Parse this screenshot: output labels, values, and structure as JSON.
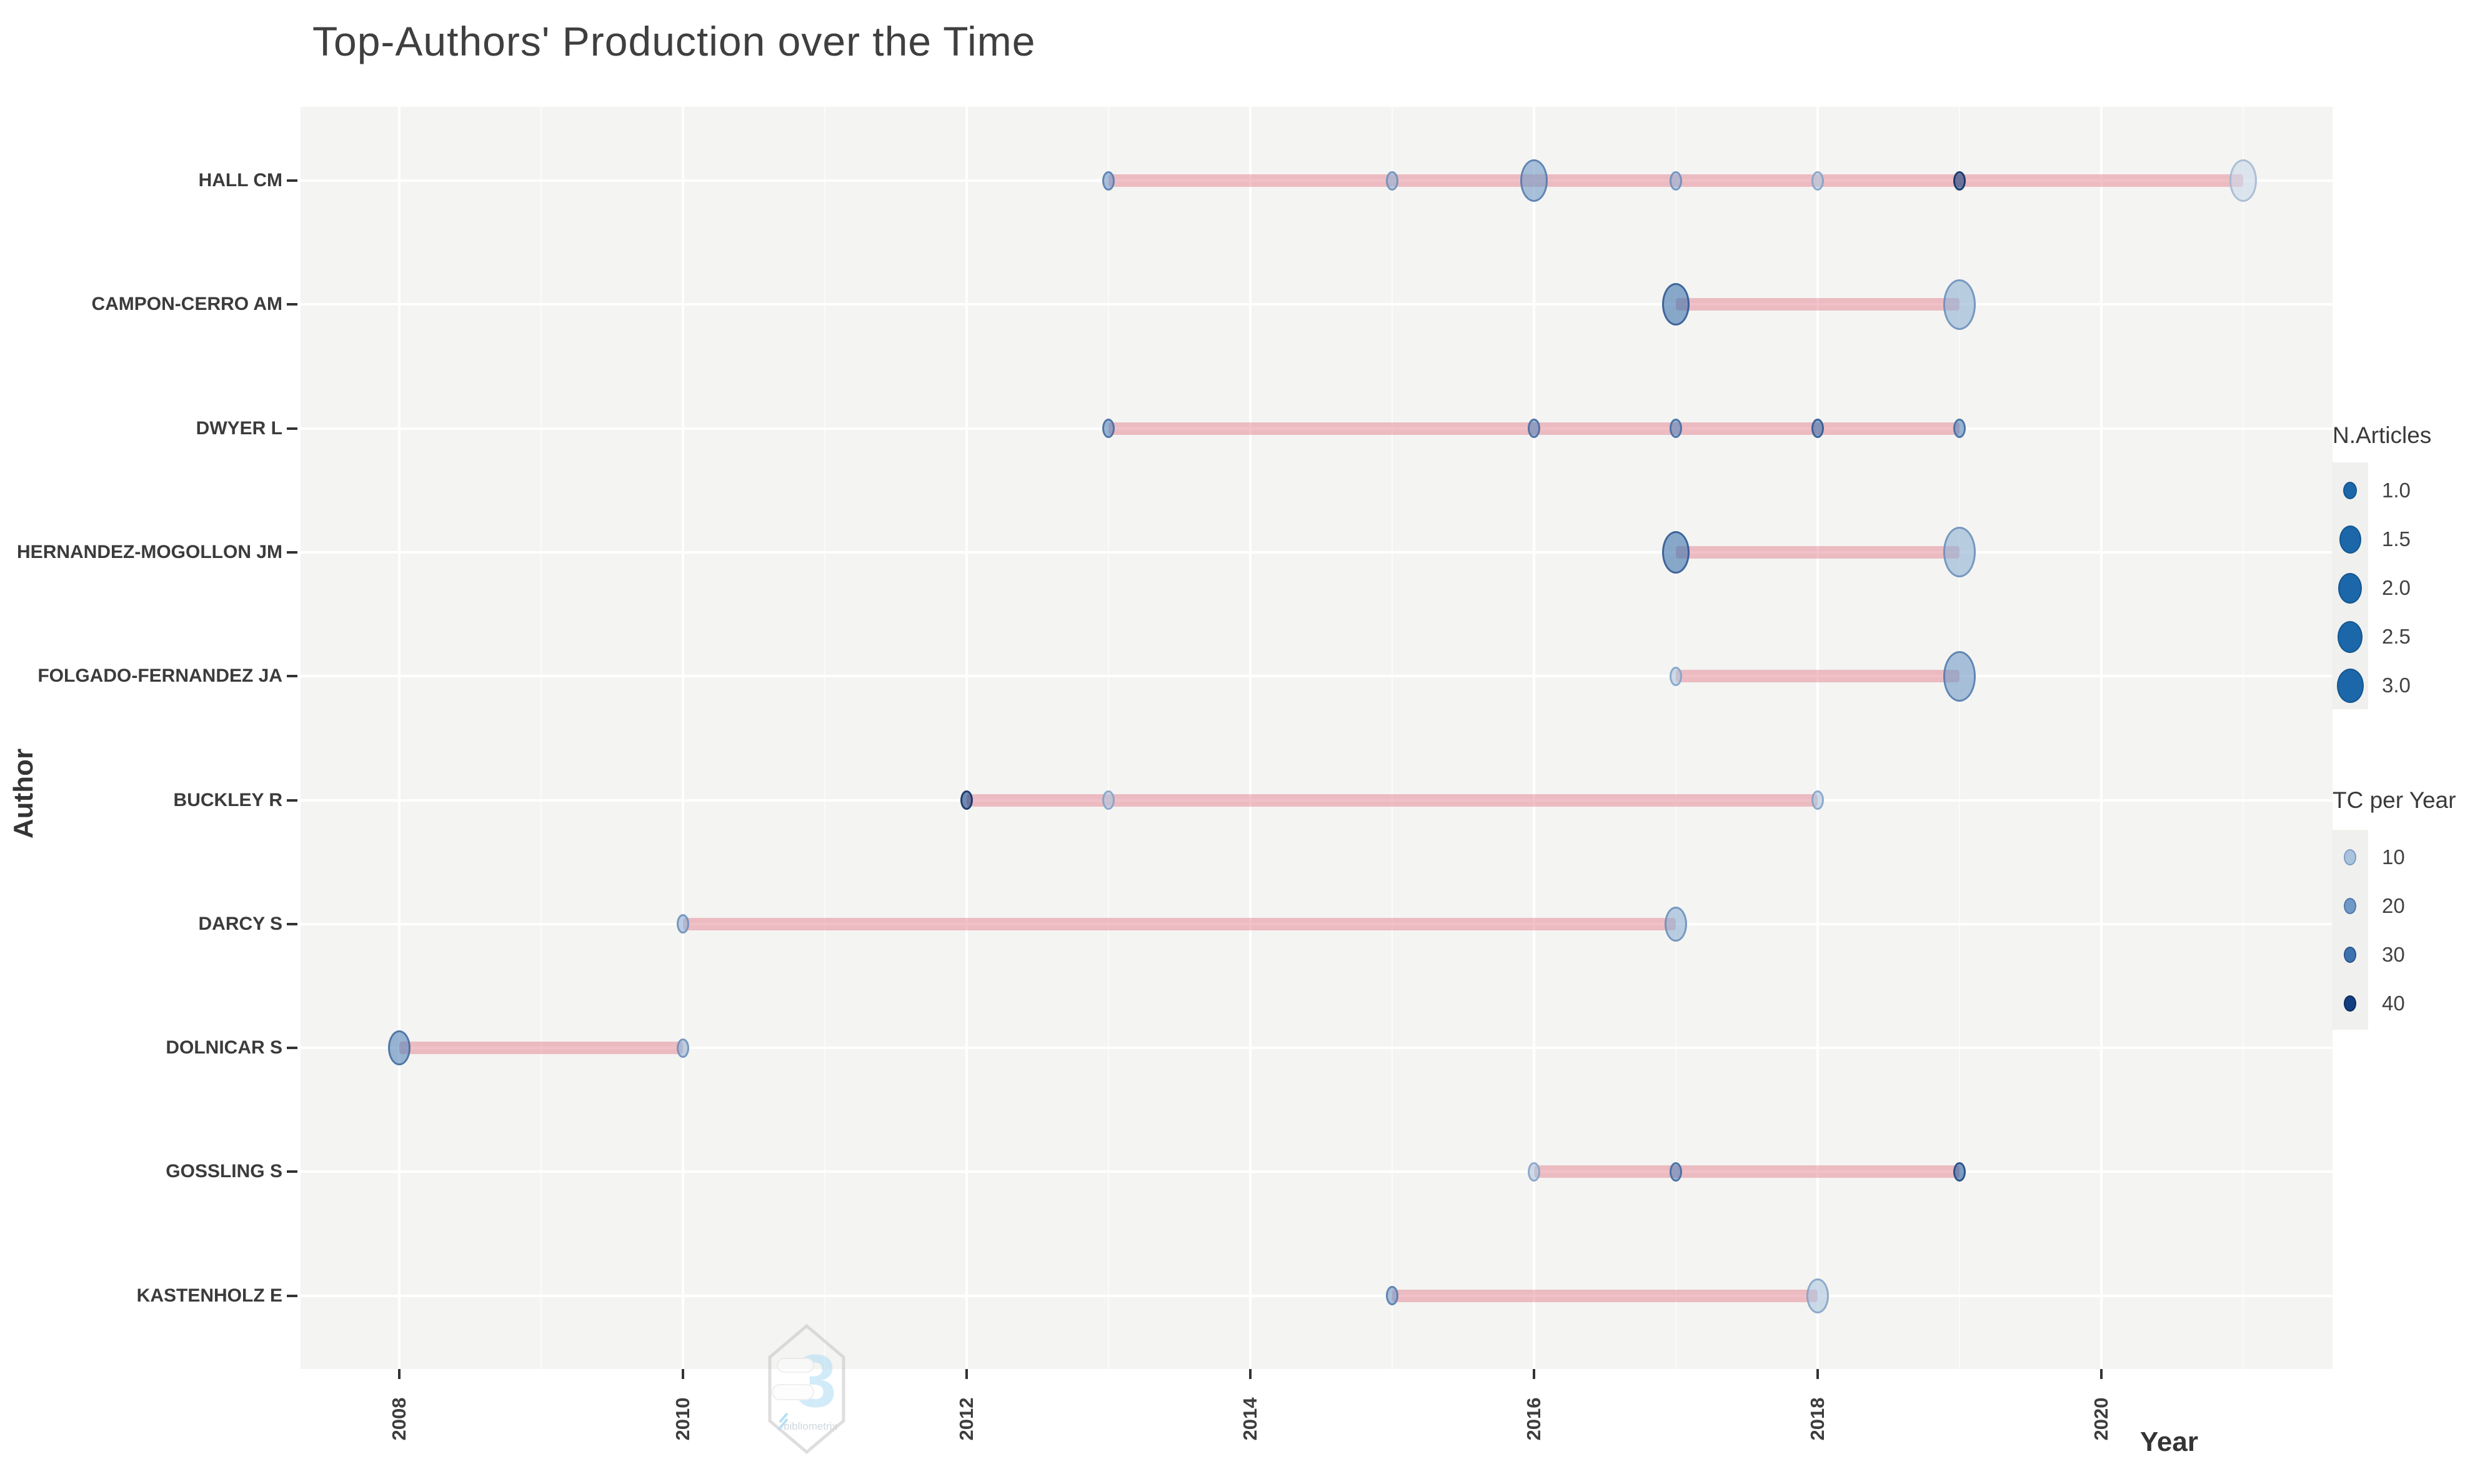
{
  "page": {
    "title": "Top-Authors' Production over the Time"
  },
  "axes": {
    "x_label": "Year",
    "y_label": "Author"
  },
  "legend_size": {
    "title": "N.Articles",
    "entries": [
      "1.0",
      "1.5",
      "2.0",
      "2.5",
      "3.0"
    ]
  },
  "legend_color": {
    "title": "TC per Year",
    "entries": [
      {
        "label": "10",
        "tc": 10
      },
      {
        "label": "20",
        "tc": 20
      },
      {
        "label": "30",
        "tc": 30
      },
      {
        "label": "40",
        "tc": 40
      }
    ]
  },
  "watermark": {
    "glyph": "3",
    "text": "bibliometrix"
  },
  "style": {
    "panel_bg": "#f4f4f2",
    "line_color": "#df7584",
    "legend_dot_color": "#1b67a9",
    "legend_dot_border": "#14568f",
    "tc_fill": {
      "5": "#c9d7e8",
      "10": "#abc4de",
      "15": "#90b1d4",
      "20": "#7199c7",
      "25": "#5786bb",
      "30": "#3d73ae",
      "35": "#285f9f",
      "40": "#133f80"
    },
    "tc_border": {
      "5": "#9db4d0",
      "10": "#7e9dc4",
      "15": "#6789b8",
      "20": "#5077ab",
      "25": "#3e669d",
      "30": "#2c538e",
      "35": "#1d437f",
      "40": "#0c2c5f"
    }
  },
  "chart_data": {
    "type": "scatter",
    "title": "Top-Authors' Production over the Time",
    "xlabel": "Year",
    "ylabel": "Author",
    "x_ticks": [
      2008,
      2010,
      2012,
      2014,
      2016,
      2018,
      2020
    ],
    "x_range": [
      2007.3,
      2021.6
    ],
    "grid": true,
    "legend_position": "right",
    "size_variable": "N.Articles",
    "color_variable": "TC per Year",
    "series": [
      {
        "author": "HALL CM",
        "points": [
          {
            "year": 2013,
            "articles": 1,
            "tc": 20
          },
          {
            "year": 2015,
            "articles": 1,
            "tc": 15
          },
          {
            "year": 2016,
            "articles": 2.5,
            "tc": 20
          },
          {
            "year": 2017,
            "articles": 1,
            "tc": 15
          },
          {
            "year": 2018,
            "articles": 1,
            "tc": 10
          },
          {
            "year": 2019,
            "articles": 1,
            "tc": 40
          },
          {
            "year": 2021,
            "articles": 2.5,
            "tc": 5
          }
        ]
      },
      {
        "author": "CAMPON-CERRO AM",
        "points": [
          {
            "year": 2017,
            "articles": 2.5,
            "tc": 30
          },
          {
            "year": 2019,
            "articles": 3,
            "tc": 15
          }
        ]
      },
      {
        "author": "DWYER L",
        "points": [
          {
            "year": 2013,
            "articles": 1,
            "tc": 25
          },
          {
            "year": 2016,
            "articles": 1,
            "tc": 25
          },
          {
            "year": 2017,
            "articles": 1,
            "tc": 25
          },
          {
            "year": 2018,
            "articles": 1,
            "tc": 30
          },
          {
            "year": 2019,
            "articles": 1,
            "tc": 25
          }
        ]
      },
      {
        "author": "HERNANDEZ-MOGOLLON JM",
        "points": [
          {
            "year": 2017,
            "articles": 2.5,
            "tc": 30
          },
          {
            "year": 2019,
            "articles": 3,
            "tc": 15
          }
        ]
      },
      {
        "author": "FOLGADO-FERNANDEZ JA",
        "points": [
          {
            "year": 2017,
            "articles": 1,
            "tc": 10
          },
          {
            "year": 2019,
            "articles": 3,
            "tc": 20
          }
        ]
      },
      {
        "author": "BUCKLEY R",
        "points": [
          {
            "year": 2012,
            "articles": 1,
            "tc": 40
          },
          {
            "year": 2013,
            "articles": 1,
            "tc": 10
          },
          {
            "year": 2018,
            "articles": 1,
            "tc": 10
          }
        ]
      },
      {
        "author": "DARCY S",
        "points": [
          {
            "year": 2010,
            "articles": 1,
            "tc": 15
          },
          {
            "year": 2017,
            "articles": 2,
            "tc": 15
          }
        ]
      },
      {
        "author": "DOLNICAR S",
        "points": [
          {
            "year": 2008,
            "articles": 2,
            "tc": 25
          },
          {
            "year": 2010,
            "articles": 1,
            "tc": 15
          }
        ]
      },
      {
        "author": "GOSSLING S",
        "points": [
          {
            "year": 2016,
            "articles": 1,
            "tc": 10
          },
          {
            "year": 2017,
            "articles": 1,
            "tc": 25
          },
          {
            "year": 2019,
            "articles": 1,
            "tc": 35
          }
        ]
      },
      {
        "author": "KASTENHOLZ E",
        "points": [
          {
            "year": 2015,
            "articles": 1,
            "tc": 20
          },
          {
            "year": 2018,
            "articles": 2,
            "tc": 10
          }
        ]
      }
    ]
  }
}
